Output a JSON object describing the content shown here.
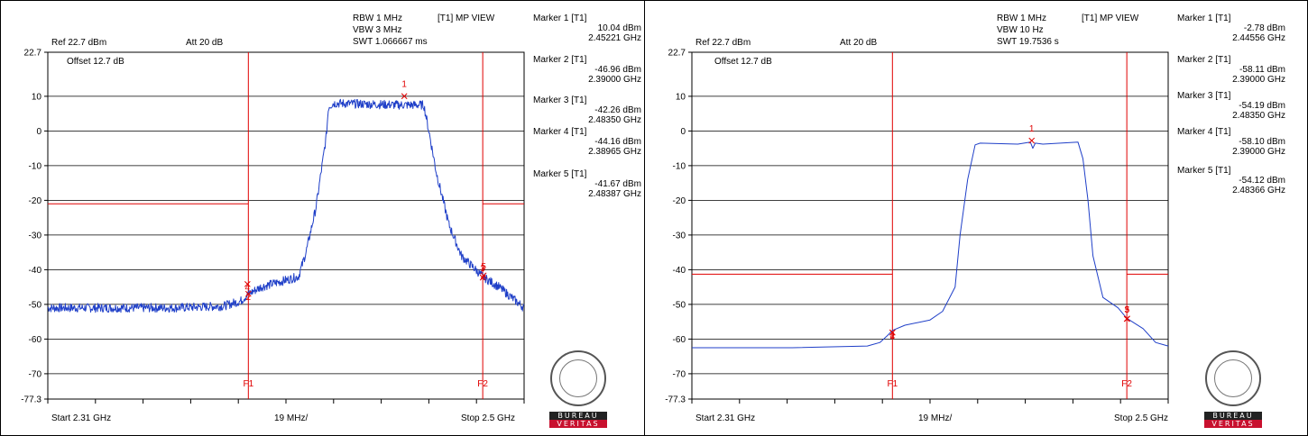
{
  "panels": [
    {
      "header": {
        "rbw": "RBW 1 MHz",
        "vbw": "VBW 3 MHz",
        "swt": "SWT 1.066667 ms",
        "mode": "[T1] MP VIEW",
        "ref": "Ref 22.7 dBm",
        "att": "Att  20 dB",
        "offset": "Offset 12.7 dB"
      },
      "markers": [
        {
          "label": "Marker 1 [T1]",
          "level": "10.04 dBm",
          "freq": "2.45221 GHz"
        },
        {
          "label": "Marker 2 [T1]",
          "level": "-46.96 dBm",
          "freq": "2.39000 GHz"
        },
        {
          "label": "Marker 3 [T1]",
          "level": "-42.26 dBm",
          "freq": "2.48350 GHz"
        },
        {
          "label": "Marker 4 [T1]",
          "level": "-44.16 dBm",
          "freq": "2.38965 GHz"
        },
        {
          "label": "Marker 5 [T1]",
          "level": "-41.67 dBm",
          "freq": "2.48387 GHz"
        }
      ],
      "footer": {
        "start": "Start 2.31 GHz",
        "div": "19 MHz/",
        "stop": "Stop 2.5 GHz"
      }
    },
    {
      "header": {
        "rbw": "RBW 1 MHz",
        "vbw": "VBW 10 Hz",
        "swt": "SWT 19.7536 s",
        "mode": "[T1] MP VIEW",
        "ref": "Ref 22.7 dBm",
        "att": "Att  20 dB",
        "offset": "Offset 12.7 dB"
      },
      "markers": [
        {
          "label": "Marker 1 [T1]",
          "level": "-2.78 dBm",
          "freq": "2.44556 GHz"
        },
        {
          "label": "Marker 2 [T1]",
          "level": "-58.11 dBm",
          "freq": "2.39000 GHz"
        },
        {
          "label": "Marker 3 [T1]",
          "level": "-54.19 dBm",
          "freq": "2.48350 GHz"
        },
        {
          "label": "Marker 4 [T1]",
          "level": "-58.10 dBm",
          "freq": "2.39000 GHz"
        },
        {
          "label": "Marker 5 [T1]",
          "level": "-54.12 dBm",
          "freq": "2.48366 GHz"
        }
      ],
      "footer": {
        "start": "Start 2.31 GHz",
        "div": "19 MHz/",
        "stop": "Stop 2.5 GHz"
      }
    }
  ],
  "logo": {
    "line1": "BUREAU",
    "line2": "VERITAS"
  },
  "colors": {
    "trace": "#1f3fc8",
    "limit": "#e00000",
    "grid": "#000000"
  },
  "chart_data": [
    {
      "type": "line",
      "xlim": [
        2.31,
        2.5
      ],
      "ylim": [
        -77.3,
        22.7
      ],
      "yticks": [
        "22.7",
        "10",
        "0",
        "-10",
        "-20",
        "-30",
        "-40",
        "-50",
        "-60",
        "-70",
        "-77.3"
      ],
      "ytick_values": [
        22.7,
        10,
        0,
        -10,
        -20,
        -30,
        -40,
        -50,
        -60,
        -70,
        -77.3
      ],
      "grid": true,
      "noisy": true,
      "series": [
        {
          "x": [
            2.31,
            2.33,
            2.36,
            2.38,
            2.387,
            2.39,
            2.395,
            2.405,
            2.41,
            2.413,
            2.417,
            2.421,
            2.422,
            2.424,
            2.45,
            2.46,
            2.462,
            2.465,
            2.47,
            2.475,
            2.4835,
            2.49,
            2.495,
            2.5
          ],
          "y": [
            -51,
            -51,
            -51,
            -50.5,
            -49,
            -47,
            -45,
            -43,
            -42,
            -35,
            -22,
            -2,
            7,
            8,
            7.5,
            7.5,
            0,
            -12,
            -27,
            -36,
            -42,
            -45,
            -48,
            -51
          ]
        }
      ],
      "vlines": [
        {
          "x": 2.39,
          "label": "F1"
        },
        {
          "x": 2.4835,
          "label": "F2"
        }
      ],
      "limit_lines": [
        {
          "x": [
            2.31,
            2.39
          ],
          "y": -21
        },
        {
          "x": [
            2.4835,
            2.5
          ],
          "y": -21
        }
      ],
      "marker_points": [
        {
          "label": "1",
          "x": 2.45221,
          "y": 10.04
        },
        {
          "label": "2",
          "x": 2.39,
          "y": -46.96
        },
        {
          "label": "3",
          "x": 2.4835,
          "y": -42.26
        },
        {
          "label": "4",
          "x": 2.38965,
          "y": -44.16
        },
        {
          "label": "5",
          "x": 2.48387,
          "y": -41.67
        }
      ]
    },
    {
      "type": "line",
      "xlim": [
        2.31,
        2.5
      ],
      "ylim": [
        -77.3,
        22.7
      ],
      "yticks": [
        "22.7",
        "10",
        "0",
        "-10",
        "-20",
        "-30",
        "-40",
        "-50",
        "-60",
        "-70",
        "-77.3"
      ],
      "ytick_values": [
        22.7,
        10,
        0,
        -10,
        -20,
        -30,
        -40,
        -50,
        -60,
        -70,
        -77.3
      ],
      "grid": true,
      "noisy": false,
      "series": [
        {
          "x": [
            2.31,
            2.35,
            2.38,
            2.385,
            2.388,
            2.39,
            2.395,
            2.405,
            2.41,
            2.415,
            2.417,
            2.42,
            2.423,
            2.425,
            2.44,
            2.445,
            2.446,
            2.447,
            2.45,
            2.464,
            2.466,
            2.468,
            2.47,
            2.474,
            2.48,
            2.4835,
            2.49,
            2.495,
            2.5
          ],
          "y": [
            -62.5,
            -62.5,
            -62,
            -61,
            -59,
            -57.5,
            -56,
            -54.5,
            -52,
            -45,
            -30,
            -14,
            -4,
            -3.5,
            -3.8,
            -3.2,
            -5,
            -3.5,
            -3.8,
            -3.2,
            -8,
            -20,
            -36,
            -48,
            -51,
            -54,
            -57,
            -61,
            -62
          ]
        }
      ],
      "vlines": [
        {
          "x": 2.39,
          "label": "F1"
        },
        {
          "x": 2.4835,
          "label": "F2"
        }
      ],
      "limit_lines": [
        {
          "x": [
            2.31,
            2.39
          ],
          "y": -41.3
        },
        {
          "x": [
            2.4835,
            2.5
          ],
          "y": -41.3
        }
      ],
      "marker_points": [
        {
          "label": "1",
          "x": 2.44556,
          "y": -2.78
        },
        {
          "label": "2",
          "x": 2.39,
          "y": -58.11
        },
        {
          "label": "3",
          "x": 2.4835,
          "y": -54.19
        },
        {
          "label": "4",
          "x": 2.39,
          "y": -58.1
        },
        {
          "label": "5",
          "x": 2.48366,
          "y": -54.12
        }
      ]
    }
  ]
}
